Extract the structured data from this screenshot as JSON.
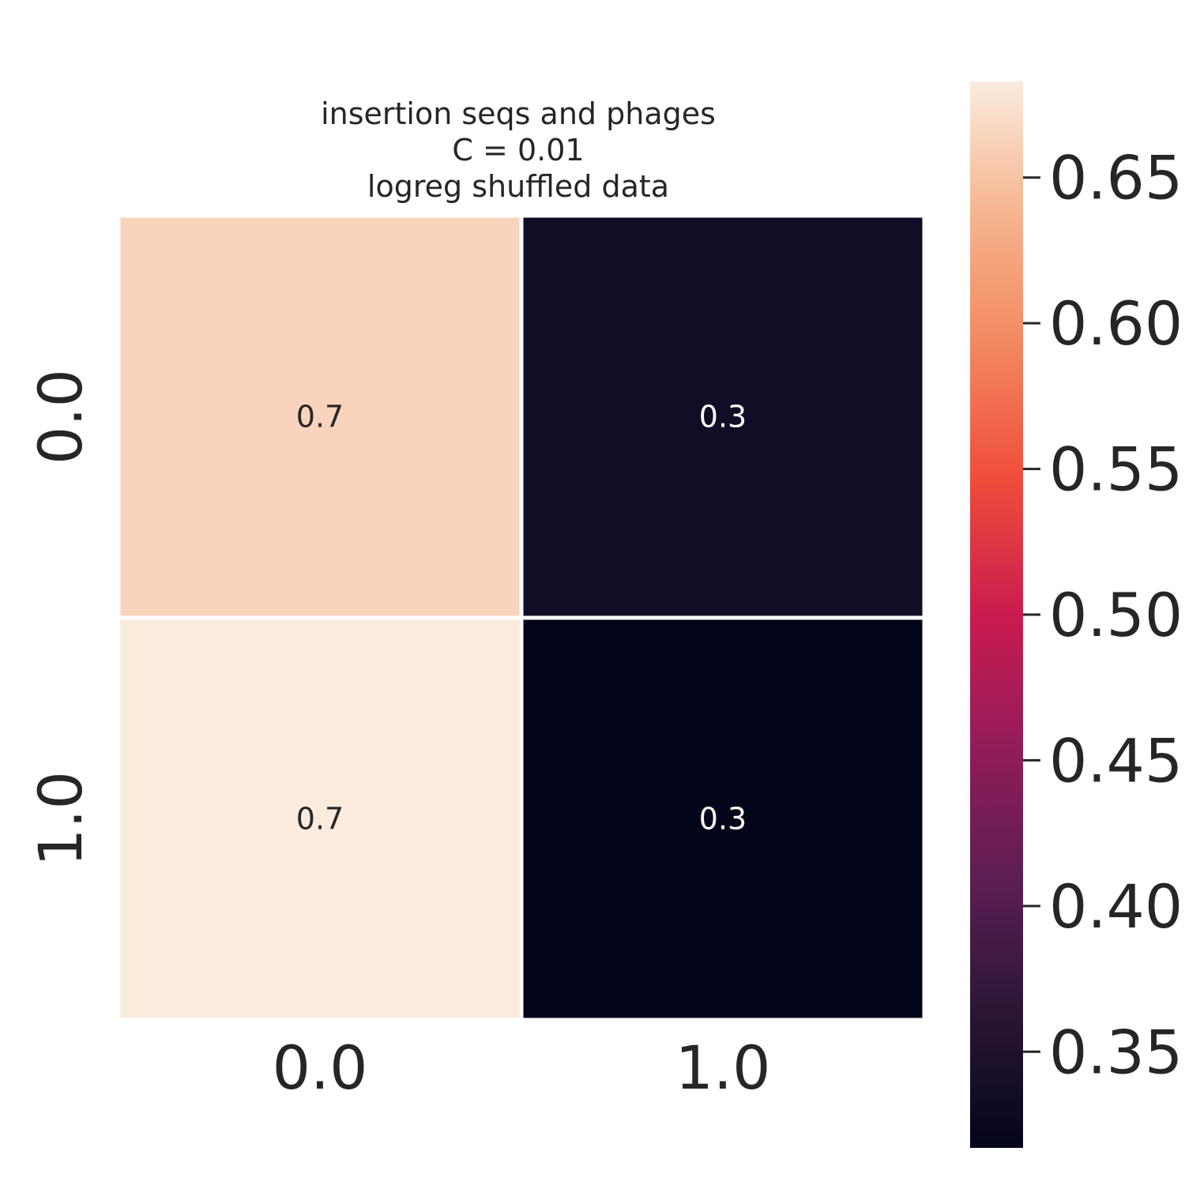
{
  "chart_data": {
    "type": "heatmap",
    "title_lines": [
      "insertion seqs and phages",
      "C = 0.01",
      "logreg shuffled data"
    ],
    "x_categories": [
      "0.0",
      "1.0"
    ],
    "y_categories": [
      "0.0",
      "1.0"
    ],
    "values": [
      [
        0.664,
        0.336
      ],
      [
        0.683,
        0.317
      ]
    ],
    "annotations": [
      [
        "0.7",
        "0.3"
      ],
      [
        "0.7",
        "0.3"
      ]
    ],
    "colorbar": {
      "min": 0.317,
      "max": 0.683,
      "ticks": [
        0.35,
        0.4,
        0.45,
        0.5,
        0.55,
        0.6,
        0.65
      ],
      "tick_labels": [
        "0.35",
        "0.40",
        "0.45",
        "0.50",
        "0.55",
        "0.60",
        "0.65"
      ],
      "colormap": "rocket",
      "colormap_stops": [
        "#03051a",
        "#2a1636",
        "#5c1e51",
        "#921c5b",
        "#cb1b4f",
        "#ef4c3a",
        "#f3875f",
        "#f6b48e",
        "#faebdd"
      ]
    },
    "annotation_colors": {
      "on_light": "#262626",
      "on_dark": "#ffffff"
    },
    "grid_line_color": "#ffffff",
    "tick_color": "#262626"
  }
}
